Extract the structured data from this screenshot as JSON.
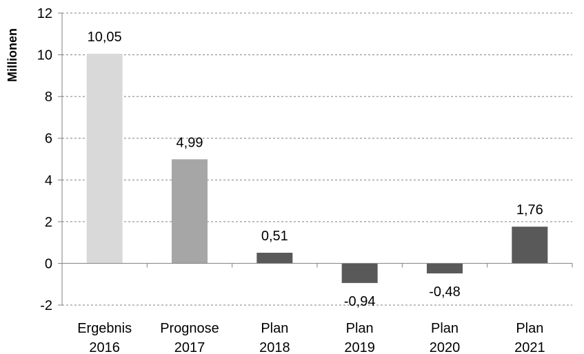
{
  "chart_data": {
    "type": "bar",
    "ylabel": "Millionen",
    "ylim": [
      -2,
      12
    ],
    "yticks": [
      "-2",
      "0",
      "2",
      "4",
      "6",
      "8",
      "10",
      "12"
    ],
    "grid": true,
    "categories": [
      [
        "Ergebnis",
        "2016"
      ],
      [
        "Prognose",
        "2017"
      ],
      [
        "Plan",
        "2018"
      ],
      [
        "Plan",
        "2019"
      ],
      [
        "Plan",
        "2020"
      ],
      [
        "Plan",
        "2021"
      ]
    ],
    "values": [
      10.05,
      4.99,
      0.51,
      -0.94,
      -0.48,
      1.76
    ],
    "data_labels": [
      "10,05",
      "4,99",
      "0,51",
      "-0,94",
      "-0,48",
      "1,76"
    ],
    "colors": [
      "#d9d9d9",
      "#a6a6a6",
      "#595959",
      "#595959",
      "#595959",
      "#595959"
    ]
  }
}
